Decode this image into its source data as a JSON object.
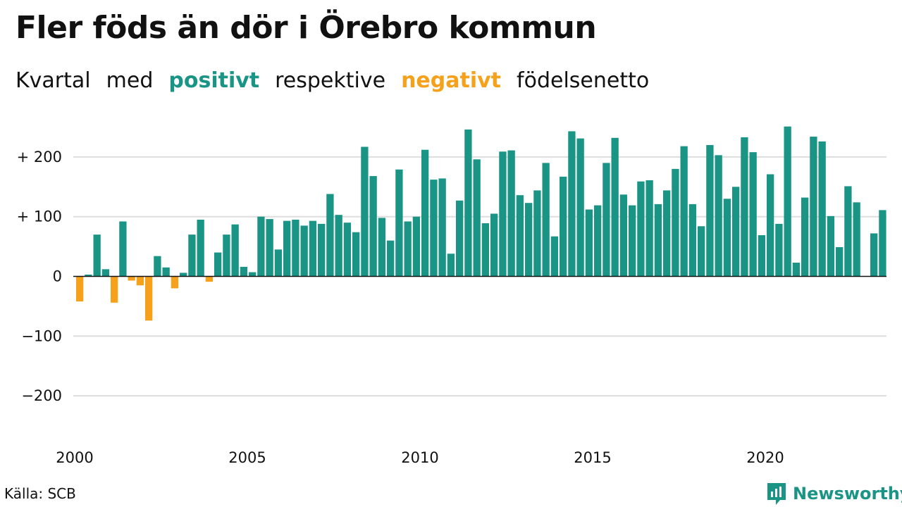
{
  "title": "Fler föds än dör i Örebro kommun",
  "subtitle": {
    "part1": "Kvartal",
    "part2": "med",
    "positive_word": "positivt",
    "part3": "respektive",
    "negative_word": "negativt",
    "part4": "födelsenetto"
  },
  "colors": {
    "positive": "#1a9485",
    "negative": "#f5a11c",
    "grid": "#dddddd",
    "baseline": "#111111"
  },
  "source": "Källa: SCB",
  "brand": {
    "name": "Newsworthy",
    "icon": "newsworthy-logo-icon"
  },
  "chart_data": {
    "type": "bar",
    "title": "Fler föds än dör i Örebro kommun",
    "subtitle": "Kvartal med positivt respektive negativt födelsenetto",
    "xlabel": "",
    "ylabel": "",
    "ylim": [
      -250,
      260
    ],
    "y_ticks": [
      {
        "value": 200,
        "label": "+ 200"
      },
      {
        "value": 100,
        "label": "+ 100"
      },
      {
        "value": 0,
        "label": "0"
      },
      {
        "value": -100,
        "label": "−100"
      },
      {
        "value": -200,
        "label": "−200"
      }
    ],
    "x_ticks": [
      "2000",
      "2005",
      "2010",
      "2015",
      "2020"
    ],
    "grid": true,
    "start": "2000 Q1",
    "frequency": "quarterly",
    "values": [
      -42,
      3,
      70,
      12,
      -44,
      92,
      -7,
      -15,
      -74,
      34,
      15,
      -20,
      6,
      70,
      95,
      -9,
      40,
      70,
      87,
      16,
      7,
      100,
      96,
      45,
      93,
      95,
      85,
      93,
      88,
      138,
      103,
      90,
      74,
      217,
      168,
      98,
      60,
      179,
      92,
      100,
      212,
      162,
      164,
      38,
      127,
      246,
      196,
      89,
      105,
      209,
      211,
      136,
      123,
      144,
      190,
      67,
      167,
      243,
      231,
      112,
      119,
      190,
      232,
      137,
      119,
      159,
      161,
      121,
      144,
      180,
      218,
      121,
      84,
      220,
      203,
      130,
      150,
      233,
      208,
      69,
      171,
      88,
      251,
      23,
      132,
      234,
      226,
      101,
      49,
      151,
      124,
      0,
      72,
      111
    ]
  }
}
